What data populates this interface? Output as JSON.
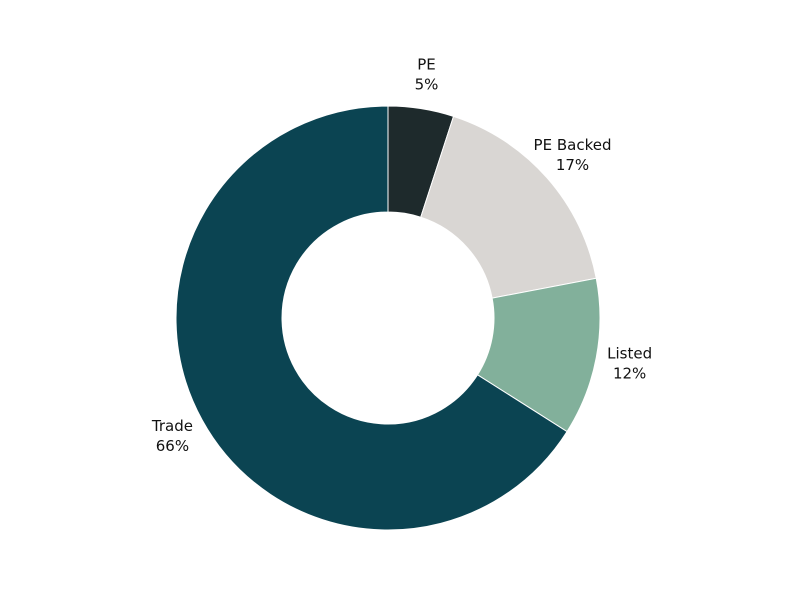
{
  "chart_data": {
    "type": "donut",
    "categories": [
      "PE",
      "PE Backed",
      "Listed",
      "Trade"
    ],
    "values": [
      5,
      17,
      12,
      66
    ],
    "value_labels": [
      "5%",
      "17%",
      "12%",
      "66%"
    ],
    "colors": [
      "#1e2a2c",
      "#d9d6d3",
      "#82b09b",
      "#0b4452"
    ]
  }
}
